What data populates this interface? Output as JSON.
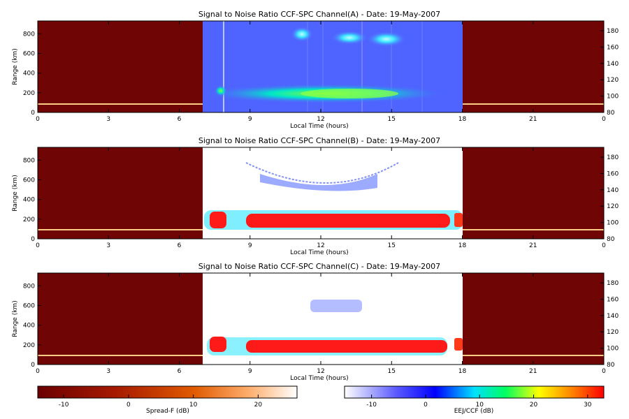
{
  "chart_data": {
    "type": "heatmap",
    "panels": [
      {
        "title": "Signal to Noise Ratio CCF-SPC Channel(A) - Date: 19-May-2007",
        "xlabel": "Local Time (hours)",
        "ylabel": "Range (km)",
        "x_ticks": [
          "0",
          "3",
          "6",
          "9",
          "12",
          "15",
          "18",
          "21",
          "0"
        ],
        "y_ticks_left": [
          "0",
          "200",
          "400",
          "600",
          "800"
        ],
        "y_ticks_right": [
          "80",
          "100",
          "120",
          "140",
          "160",
          "180"
        ],
        "xlim": [
          0,
          24
        ],
        "ylim_left": [
          0,
          930
        ],
        "ylim_right": [
          80,
          192
        ],
        "night_windows_hours": [
          [
            0,
            7
          ],
          [
            18,
            24
          ]
        ],
        "day_window_hours": [
          7,
          18
        ],
        "night_layer_range_km": 100,
        "features": [
          {
            "t_start": 8.0,
            "t_end": 17.6,
            "range_km": 200,
            "snr_db": 12
          },
          {
            "t_start": 10.8,
            "t_end": 11.6,
            "range_km": 740,
            "snr_db": 6
          },
          {
            "t_start": 12.6,
            "t_end": 14.0,
            "range_km": 750,
            "snr_db": 6
          }
        ]
      },
      {
        "title": "Signal to Noise Ratio CCF-SPC Channel(B) - Date: 19-May-2007",
        "xlabel": "Local Time (hours)",
        "ylabel": "Range (km)",
        "x_ticks": [
          "0",
          "3",
          "6",
          "9",
          "12",
          "15",
          "18",
          "21",
          "0"
        ],
        "y_ticks_left": [
          "0",
          "200",
          "400",
          "600",
          "800"
        ],
        "y_ticks_right": [
          "80",
          "100",
          "120",
          "140",
          "160",
          "180"
        ],
        "xlim": [
          0,
          24
        ],
        "ylim_left": [
          0,
          930
        ],
        "ylim_right": [
          80,
          192
        ],
        "night_windows_hours": [
          [
            0,
            7
          ],
          [
            18,
            24
          ]
        ],
        "day_window_hours": [
          7,
          18
        ],
        "night_layer_range_km": 100,
        "features": [
          {
            "t_start": 7.2,
            "t_end": 7.8,
            "range_km": 210,
            "snr_db": 30
          },
          {
            "t_start": 9.0,
            "t_end": 17.5,
            "range_km": 200,
            "snr_db": 30
          },
          {
            "t_start": 10.5,
            "t_end": 15.5,
            "range_km": 600,
            "snr_db": -8
          }
        ]
      },
      {
        "title": "Signal to Noise Ratio CCF-SPC Channel(C) - Date: 19-May-2007",
        "xlabel": "Local Time (hours)",
        "ylabel": "Range (km)",
        "x_ticks": [
          "0",
          "3",
          "6",
          "9",
          "12",
          "15",
          "18",
          "21",
          "0"
        ],
        "y_ticks_left": [
          "0",
          "200",
          "400",
          "600",
          "800"
        ],
        "y_ticks_right": [
          "80",
          "100",
          "120",
          "140",
          "160",
          "180"
        ],
        "xlim": [
          0,
          24
        ],
        "ylim_left": [
          0,
          930
        ],
        "ylim_right": [
          80,
          192
        ],
        "night_windows_hours": [
          [
            0,
            7
          ],
          [
            18,
            24
          ]
        ],
        "day_window_hours": [
          7,
          18
        ],
        "night_layer_range_km": 100,
        "features": [
          {
            "t_start": 7.2,
            "t_end": 7.8,
            "range_km": 210,
            "snr_db": 30
          },
          {
            "t_start": 9.0,
            "t_end": 17.5,
            "range_km": 200,
            "snr_db": 30
          },
          {
            "t_start": 12.0,
            "t_end": 14.0,
            "range_km": 560,
            "snr_db": -6
          }
        ]
      }
    ],
    "colorbars": [
      {
        "label": "Spread-F (dB)",
        "ticks": [
          "-10",
          "0",
          "10",
          "20"
        ],
        "range": [
          -14,
          26
        ],
        "colors": [
          "#6b0000",
          "#a61a00",
          "#e05a00",
          "#ffb070",
          "#ffffff"
        ]
      },
      {
        "label": "EEJ/CCF (dB)",
        "ticks": [
          "-10",
          "0",
          "10",
          "20",
          "30"
        ],
        "range": [
          -15,
          33
        ],
        "colors": [
          "#ffffff",
          "#5a5aff",
          "#00e0ff",
          "#ffff00",
          "#ff0000"
        ]
      }
    ]
  }
}
